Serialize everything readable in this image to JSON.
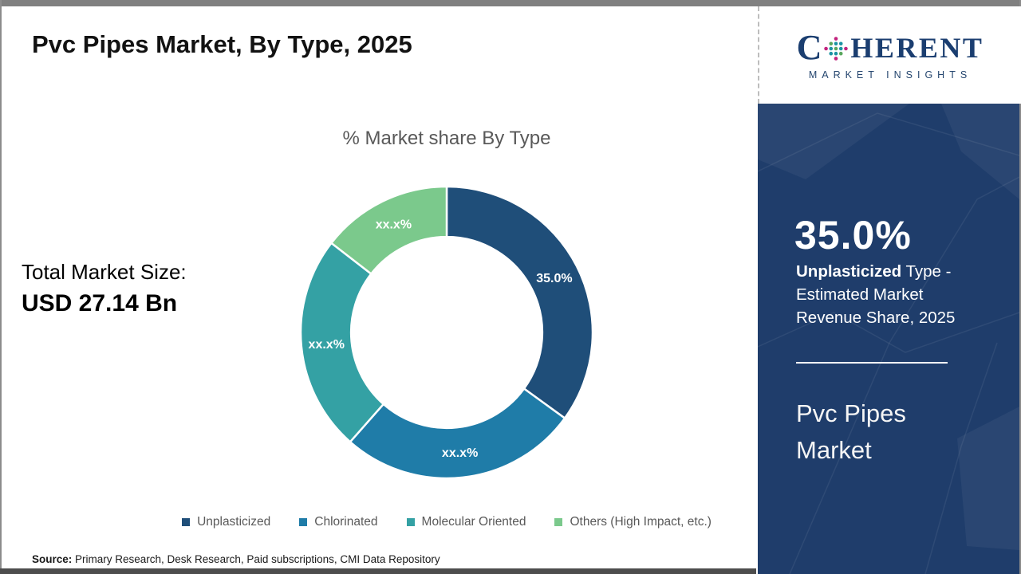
{
  "header": {
    "title": "Pvc Pipes Market, By Type, 2025"
  },
  "logo": {
    "brand_prefix": "C",
    "brand_suffix": "HERENT",
    "tagline": "MARKET INSIGHTS",
    "brand_color": "#1B3E70"
  },
  "summary": {
    "label": "Total Market Size:",
    "value": "USD 27.14 Bn"
  },
  "chart_data": {
    "type": "pie",
    "subtype": "donut",
    "title": "% Market share By Type",
    "categories": [
      "Unplasticized",
      "Chlorinated",
      "Molecular Oriented",
      "Others (High Impact, etc.)"
    ],
    "values": [
      35.0,
      26.5,
      24.0,
      14.5
    ],
    "value_labels": [
      "35.0%",
      "xx.x%",
      "xx.x%",
      "xx.x%"
    ],
    "colors": [
      "#1F4E79",
      "#1F7CA8",
      "#34A1A4",
      "#7BC98C"
    ],
    "start_angle_deg": 0,
    "direction": "clockwise",
    "inner_radius_ratio": 0.655,
    "legend_position": "bottom"
  },
  "sidebar": {
    "background": "#1F3D6B",
    "highlight_value": "35.0%",
    "highlight_bold": "Unplasticized",
    "highlight_rest": " Type - Estimated Market Revenue Share, 2025",
    "panel_title": "Pvc Pipes Market"
  },
  "source": {
    "label": "Source:",
    "text": " Primary Research, Desk Research, Paid subscriptions, CMI Data Repository"
  }
}
